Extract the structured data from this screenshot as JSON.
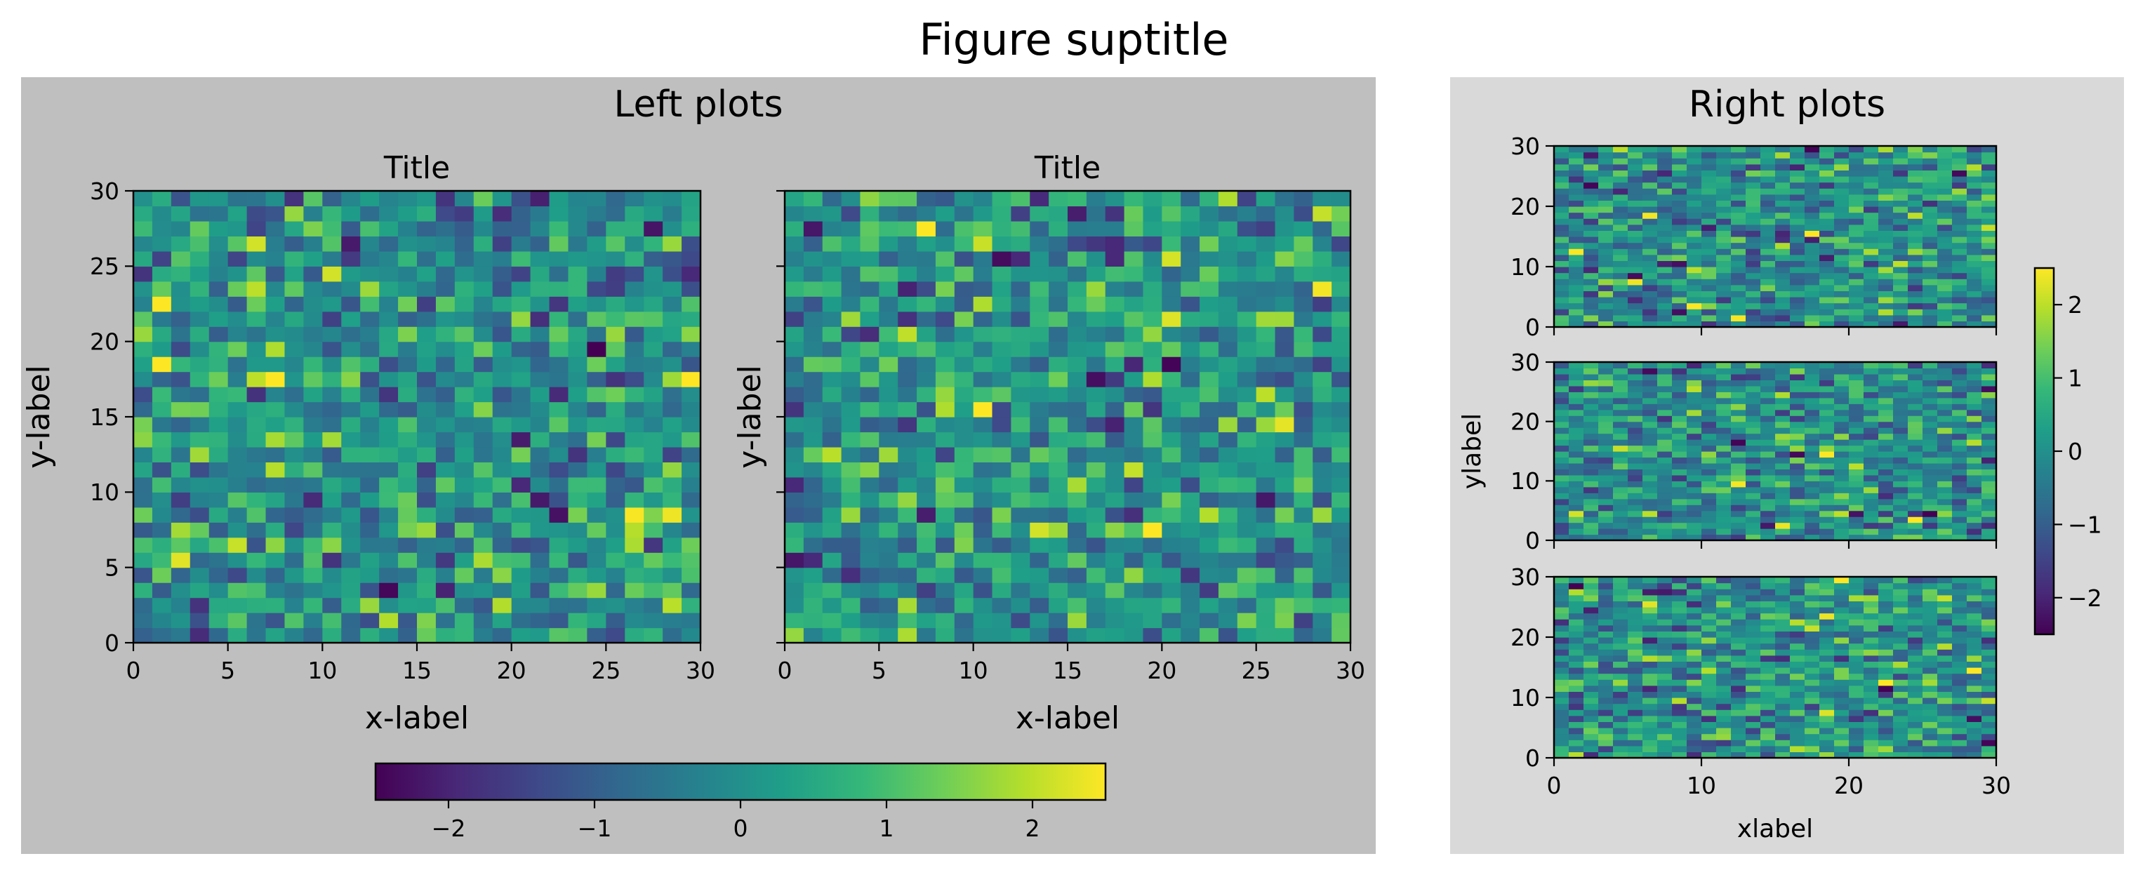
{
  "figure": {
    "suptitle": "Figure suptitle"
  },
  "colormap": {
    "name": "viridis",
    "stops": [
      "#440154",
      "#482878",
      "#3e4989",
      "#31688e",
      "#26828e",
      "#1f9e89",
      "#35b779",
      "#6ece58",
      "#b5de2b",
      "#fde725"
    ],
    "vmin": -2.5,
    "vmax": 2.5
  },
  "panels": {
    "left": {
      "title": "Left plots",
      "background": "#bfbfbf"
    },
    "right": {
      "title": "Right plots",
      "background": "#d9d9d9"
    }
  },
  "chart_data": [
    {
      "type": "heatmap",
      "id": "left-1",
      "title": "Title",
      "xlabel": "x-label",
      "ylabel": "y-label",
      "xlim": [
        0,
        30
      ],
      "ylim": [
        0,
        30
      ],
      "grid": [
        30,
        30
      ],
      "xticks": [
        0,
        5,
        10,
        15,
        20,
        25,
        30
      ],
      "yticks": [
        0,
        5,
        10,
        15,
        20,
        25,
        30
      ],
      "xtick_labels": [
        "0",
        "5",
        "10",
        "15",
        "20",
        "25",
        "30"
      ],
      "ytick_labels": [
        "0",
        "5",
        "10",
        "15",
        "20",
        "25",
        "30"
      ],
      "values": "30x30 standard-normal random field (approx. -2.5 to 2.5)",
      "seed": 11
    },
    {
      "type": "heatmap",
      "id": "left-2",
      "title": "Title",
      "xlabel": "x-label",
      "ylabel": "y-label",
      "xlim": [
        0,
        30
      ],
      "ylim": [
        0,
        30
      ],
      "grid": [
        30,
        30
      ],
      "xticks": [
        0,
        5,
        10,
        15,
        20,
        25,
        30
      ],
      "yticks": [
        0,
        5,
        10,
        15,
        20,
        25,
        30
      ],
      "xtick_labels": [
        "0",
        "5",
        "10",
        "15",
        "20",
        "25",
        "30"
      ],
      "ytick_labels": [],
      "values": "30x30 standard-normal random field (approx. -2.5 to 2.5)",
      "seed": 23
    },
    {
      "type": "heatmap",
      "id": "right-1",
      "title": "",
      "xlabel": "",
      "ylabel": "",
      "xlim": [
        0,
        30
      ],
      "ylim": [
        0,
        30
      ],
      "grid": [
        30,
        30
      ],
      "xticks": [
        0,
        10,
        20,
        30
      ],
      "yticks": [
        0,
        10,
        20,
        30
      ],
      "xtick_labels": [],
      "ytick_labels": [
        "0",
        "10",
        "20",
        "30"
      ],
      "values": "30x30 standard-normal random field (approx. -2.5 to 2.5)",
      "seed": 37
    },
    {
      "type": "heatmap",
      "id": "right-2",
      "title": "",
      "xlabel": "",
      "ylabel": "ylabel",
      "xlim": [
        0,
        30
      ],
      "ylim": [
        0,
        30
      ],
      "grid": [
        30,
        30
      ],
      "xticks": [
        0,
        10,
        20,
        30
      ],
      "yticks": [
        0,
        10,
        20,
        30
      ],
      "xtick_labels": [],
      "ytick_labels": [
        "0",
        "10",
        "20",
        "30"
      ],
      "values": "30x30 standard-normal random field (approx. -2.5 to 2.5)",
      "seed": 41
    },
    {
      "type": "heatmap",
      "id": "right-3",
      "title": "",
      "xlabel": "xlabel",
      "ylabel": "",
      "xlim": [
        0,
        30
      ],
      "ylim": [
        0,
        30
      ],
      "grid": [
        30,
        30
      ],
      "xticks": [
        0,
        10,
        20,
        30
      ],
      "yticks": [
        0,
        10,
        20,
        30
      ],
      "xtick_labels": [
        "0",
        "10",
        "20",
        "30"
      ],
      "ytick_labels": [
        "0",
        "10",
        "20",
        "30"
      ],
      "values": "30x30 standard-normal random field (approx. -2.5 to 2.5)",
      "seed": 53
    }
  ],
  "colorbars": {
    "left": {
      "orientation": "horizontal",
      "ticks": [
        -2,
        -1,
        0,
        1,
        2
      ],
      "tick_labels": [
        "−2",
        "−1",
        "0",
        "1",
        "2"
      ]
    },
    "right": {
      "orientation": "vertical",
      "ticks": [
        -2,
        -1,
        0,
        1,
        2
      ],
      "tick_labels": [
        "−2",
        "−1",
        "0",
        "1",
        "2"
      ]
    }
  }
}
